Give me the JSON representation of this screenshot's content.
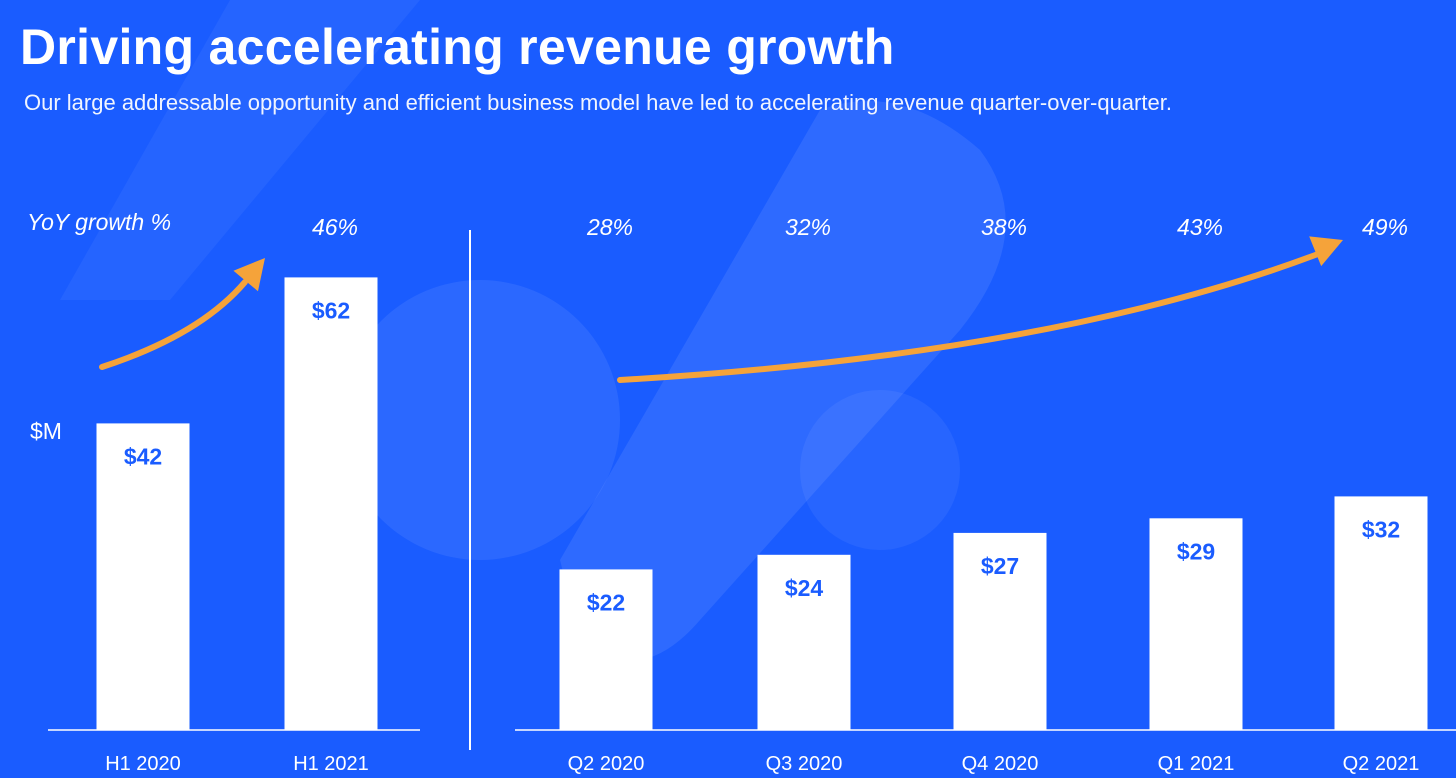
{
  "header": {
    "title": "Driving accelerating revenue growth",
    "subtitle": "Our large addressable opportunity and efficient business model have led to accelerating revenue quarter-over-quarter."
  },
  "labels": {
    "growth_axis": "YoY growth %",
    "unit": "$M"
  },
  "colors": {
    "background": "#1a5cff",
    "bar": "#ffffff",
    "bar_label": "#1a5cff",
    "arrow": "#f5a33a"
  },
  "chart_data": [
    {
      "type": "bar",
      "categories": [
        "H1 2020",
        "H1 2021"
      ],
      "values": [
        42,
        62
      ],
      "value_labels": [
        "$42",
        "$62"
      ],
      "growth_labels": [
        "",
        "46%"
      ],
      "ylabel": "$M"
    },
    {
      "type": "bar",
      "categories": [
        "Q2 2020",
        "Q3 2020",
        "Q4 2020",
        "Q1 2021",
        "Q2 2021"
      ],
      "values": [
        22,
        24,
        27,
        29,
        32
      ],
      "value_labels": [
        "$22",
        "$24",
        "$27",
        "$29",
        "$32"
      ],
      "growth_labels": [
        "28%",
        "32%",
        "38%",
        "43%",
        "49%"
      ],
      "ylabel": "$M"
    }
  ]
}
